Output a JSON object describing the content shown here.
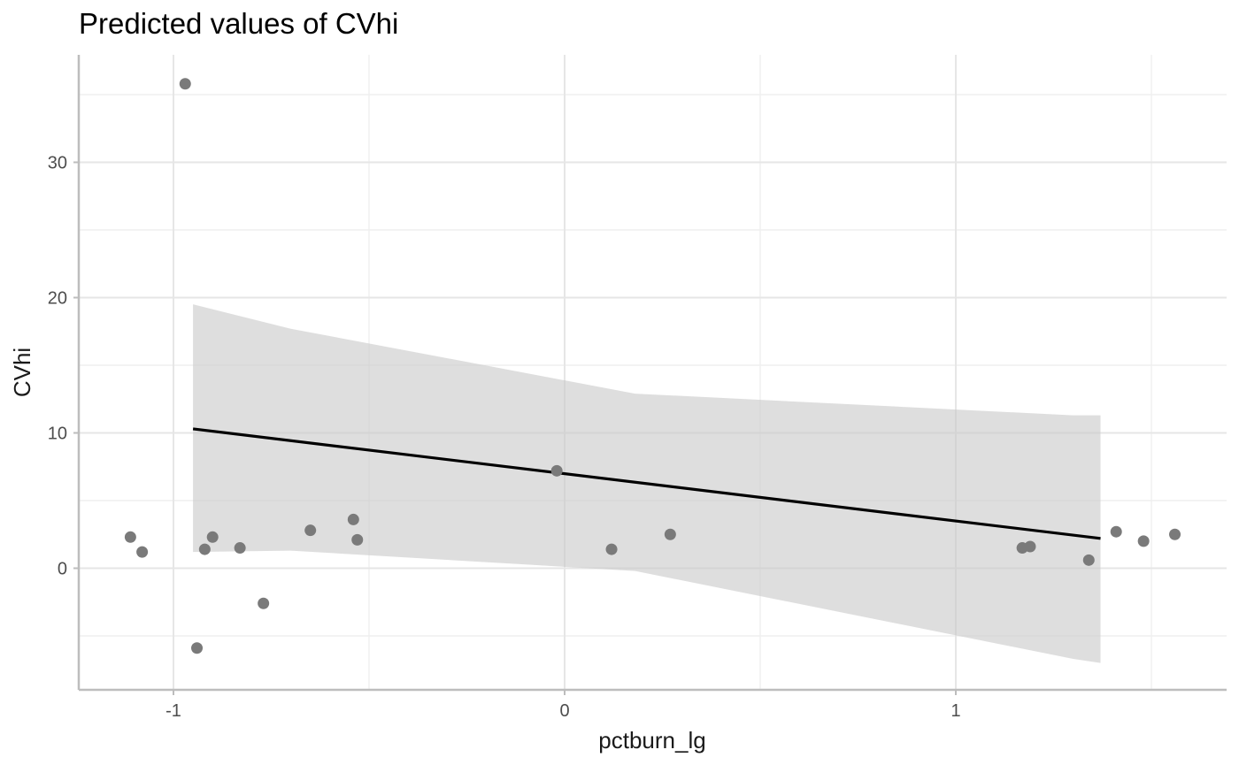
{
  "chart_data": {
    "type": "scatter",
    "title": "Predicted values of CVhi",
    "xlabel": "pctburn_lg",
    "ylabel": "CVhi",
    "xlim": [
      -1.25,
      1.7
    ],
    "ylim": [
      -9,
      38
    ],
    "x_ticks": [
      -1,
      0,
      1
    ],
    "x_tick_labels": [
      "-1",
      "0",
      "1"
    ],
    "y_ticks": [
      0,
      10,
      20,
      30
    ],
    "y_tick_labels": [
      "0",
      "10",
      "20",
      "30"
    ],
    "grid": true,
    "legend": "none",
    "colors": {
      "points": "#7a7a7a",
      "line": "#000000",
      "ribbon": "#c8c8c8",
      "grid_major": "#e6e6e6",
      "grid_minor": "#efefef",
      "axis": "#bdbdbd"
    },
    "points": {
      "x": [
        -0.97,
        -1.11,
        -1.08,
        -0.94,
        -0.92,
        -0.9,
        -0.83,
        -0.77,
        -0.65,
        -0.54,
        -0.53,
        -0.02,
        0.12,
        0.27,
        1.17,
        1.19,
        1.34,
        1.41,
        1.48,
        1.56
      ],
      "y": [
        35.8,
        2.3,
        1.2,
        -5.9,
        1.4,
        2.3,
        1.5,
        -2.6,
        2.8,
        3.6,
        2.1,
        7.2,
        1.4,
        2.5,
        1.5,
        1.6,
        0.6,
        2.7,
        2.0,
        2.5
      ]
    },
    "fit_line": {
      "x": [
        -0.95,
        1.37
      ],
      "y": [
        10.3,
        2.2
      ]
    },
    "confidence_band": {
      "x": [
        -0.95,
        -0.7,
        0.18,
        1.3,
        1.37
      ],
      "upper": [
        19.5,
        17.7,
        12.9,
        11.3,
        11.3
      ],
      "lower": [
        1.2,
        1.3,
        -0.2,
        -6.7,
        -7.0
      ]
    }
  }
}
